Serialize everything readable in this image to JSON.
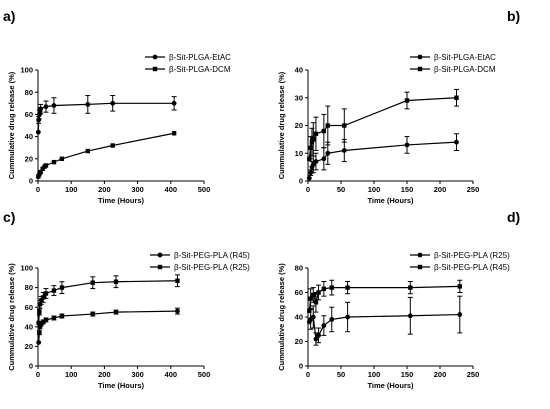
{
  "chart_data": [
    {
      "type": "line",
      "panel_label": "a)",
      "xlabel": "Time (Hours)",
      "ylabel": "Cummulative drug release (%)",
      "xlim": [
        0,
        500
      ],
      "ylim": [
        0,
        100
      ],
      "xticks": [
        0,
        100,
        200,
        300,
        400,
        500
      ],
      "yticks": [
        0,
        20,
        40,
        60,
        80,
        100
      ],
      "legend_position": "top-right",
      "series": [
        {
          "name": "β-Sit-PLGA-EtAC",
          "marker": "circle",
          "points": [
            [
              1,
              44
            ],
            [
              2,
              55
            ],
            [
              4,
              60
            ],
            [
              6,
              63
            ],
            [
              8,
              65
            ],
            [
              24,
              67
            ],
            [
              48,
              68
            ],
            [
              150,
              69
            ],
            [
              225,
              70
            ],
            [
              410,
              70
            ]
          ],
          "errors": [
            0,
            3,
            4,
            3,
            4,
            5,
            7,
            8,
            7,
            6
          ]
        },
        {
          "name": "β-Sit-PLGA-DCM",
          "marker": "square",
          "points": [
            [
              1,
              4
            ],
            [
              4,
              6
            ],
            [
              8,
              8
            ],
            [
              14,
              11
            ],
            [
              20,
              13
            ],
            [
              24,
              14
            ],
            [
              48,
              17
            ],
            [
              72,
              20
            ],
            [
              150,
              27
            ],
            [
              225,
              32
            ],
            [
              410,
              43
            ]
          ],
          "errors": [
            0,
            0,
            0,
            0,
            0,
            0,
            0,
            0,
            0,
            0,
            0
          ]
        }
      ]
    },
    {
      "type": "line",
      "panel_label": "b)",
      "xlabel": "Time (Hours)",
      "ylabel": "Cummulative drug release (%)",
      "xlim": [
        0,
        250
      ],
      "ylim": [
        0,
        40
      ],
      "xticks": [
        0,
        50,
        100,
        150,
        200,
        250
      ],
      "yticks": [
        0,
        10,
        20,
        30,
        40
      ],
      "legend_position": "top-right",
      "series": [
        {
          "name": "β-Sit-PLGA-EtAC",
          "marker": "circle",
          "points": [
            [
              2,
              1
            ],
            [
              4,
              3
            ],
            [
              6,
              5
            ],
            [
              8,
              6
            ],
            [
              12,
              7
            ],
            [
              24,
              8
            ],
            [
              30,
              10
            ],
            [
              55,
              11
            ],
            [
              150,
              13
            ],
            [
              225,
              14
            ]
          ],
          "errors": [
            0,
            1,
            2,
            3,
            3,
            4,
            4,
            4,
            3,
            3
          ]
        },
        {
          "name": "β-Sit-PLGA-DCM",
          "marker": "square",
          "points": [
            [
              2,
              8
            ],
            [
              4,
              12
            ],
            [
              6,
              14
            ],
            [
              8,
              15
            ],
            [
              12,
              17
            ],
            [
              24,
              18
            ],
            [
              30,
              20
            ],
            [
              55,
              20
            ],
            [
              150,
              29
            ],
            [
              225,
              30
            ]
          ],
          "errors": [
            0,
            4,
            5,
            6,
            6,
            6,
            7,
            6,
            3,
            3
          ]
        }
      ]
    },
    {
      "type": "line",
      "panel_label": "c)",
      "xlabel": "Time (Hours)",
      "ylabel": "Cummulative drug release (%)",
      "xlim": [
        0,
        500
      ],
      "ylim": [
        0,
        100
      ],
      "xticks": [
        0,
        100,
        200,
        300,
        400,
        500
      ],
      "yticks": [
        0,
        20,
        40,
        60,
        80,
        100
      ],
      "legend_position": "top-right",
      "series": [
        {
          "name": "β-Sit-PEG-PLA (R45)",
          "marker": "circle",
          "points": [
            [
              2,
              24
            ],
            [
              4,
              34
            ],
            [
              6,
              40
            ],
            [
              10,
              43
            ],
            [
              16,
              45
            ],
            [
              24,
              47
            ],
            [
              48,
              49
            ],
            [
              72,
              51
            ],
            [
              165,
              53
            ],
            [
              235,
              55
            ],
            [
              420,
              56
            ]
          ],
          "errors": [
            0,
            2,
            2,
            2,
            2,
            2,
            2,
            2,
            2,
            2,
            3
          ]
        },
        {
          "name": "β-Sit-PEG-PLA (R25)",
          "marker": "square",
          "points": [
            [
              2,
              44
            ],
            [
              4,
              55
            ],
            [
              6,
              63
            ],
            [
              10,
              67
            ],
            [
              16,
              70
            ],
            [
              24,
              74
            ],
            [
              48,
              77
            ],
            [
              72,
              80
            ],
            [
              165,
              85
            ],
            [
              235,
              86
            ],
            [
              420,
              87
            ]
          ],
          "errors": [
            0,
            3,
            4,
            4,
            5,
            5,
            5,
            6,
            6,
            6,
            6
          ]
        }
      ]
    },
    {
      "type": "line",
      "panel_label": "d)",
      "xlabel": "Time (Hours)",
      "ylabel": "Cummulative drug release (%)",
      "xlim": [
        0,
        250
      ],
      "ylim": [
        0,
        80
      ],
      "xticks": [
        0,
        50,
        100,
        150,
        200,
        250
      ],
      "yticks": [
        0,
        20,
        40,
        60,
        80
      ],
      "legend_position": "top-right",
      "series": [
        {
          "name": "β-Sit-PEG-PLA (R25)",
          "marker": "circle",
          "points": [
            [
              2,
              36
            ],
            [
              4,
              38
            ],
            [
              8,
              40
            ],
            [
              12,
              22
            ],
            [
              16,
              25
            ],
            [
              24,
              33
            ],
            [
              36,
              38
            ],
            [
              60,
              40
            ],
            [
              155,
              41
            ],
            [
              230,
              42
            ]
          ],
          "errors": [
            0,
            8,
            9,
            5,
            6,
            8,
            10,
            12,
            15,
            15
          ]
        },
        {
          "name": "β-Sit-PEG-PLA (R45)",
          "marker": "square",
          "points": [
            [
              2,
              45
            ],
            [
              4,
              55
            ],
            [
              8,
              58
            ],
            [
              12,
              52
            ],
            [
              16,
              60
            ],
            [
              24,
              63
            ],
            [
              36,
              64
            ],
            [
              60,
              64
            ],
            [
              155,
              64
            ],
            [
              230,
              65
            ]
          ],
          "errors": [
            0,
            8,
            6,
            8,
            6,
            6,
            6,
            5,
            5,
            5
          ]
        }
      ]
    }
  ]
}
